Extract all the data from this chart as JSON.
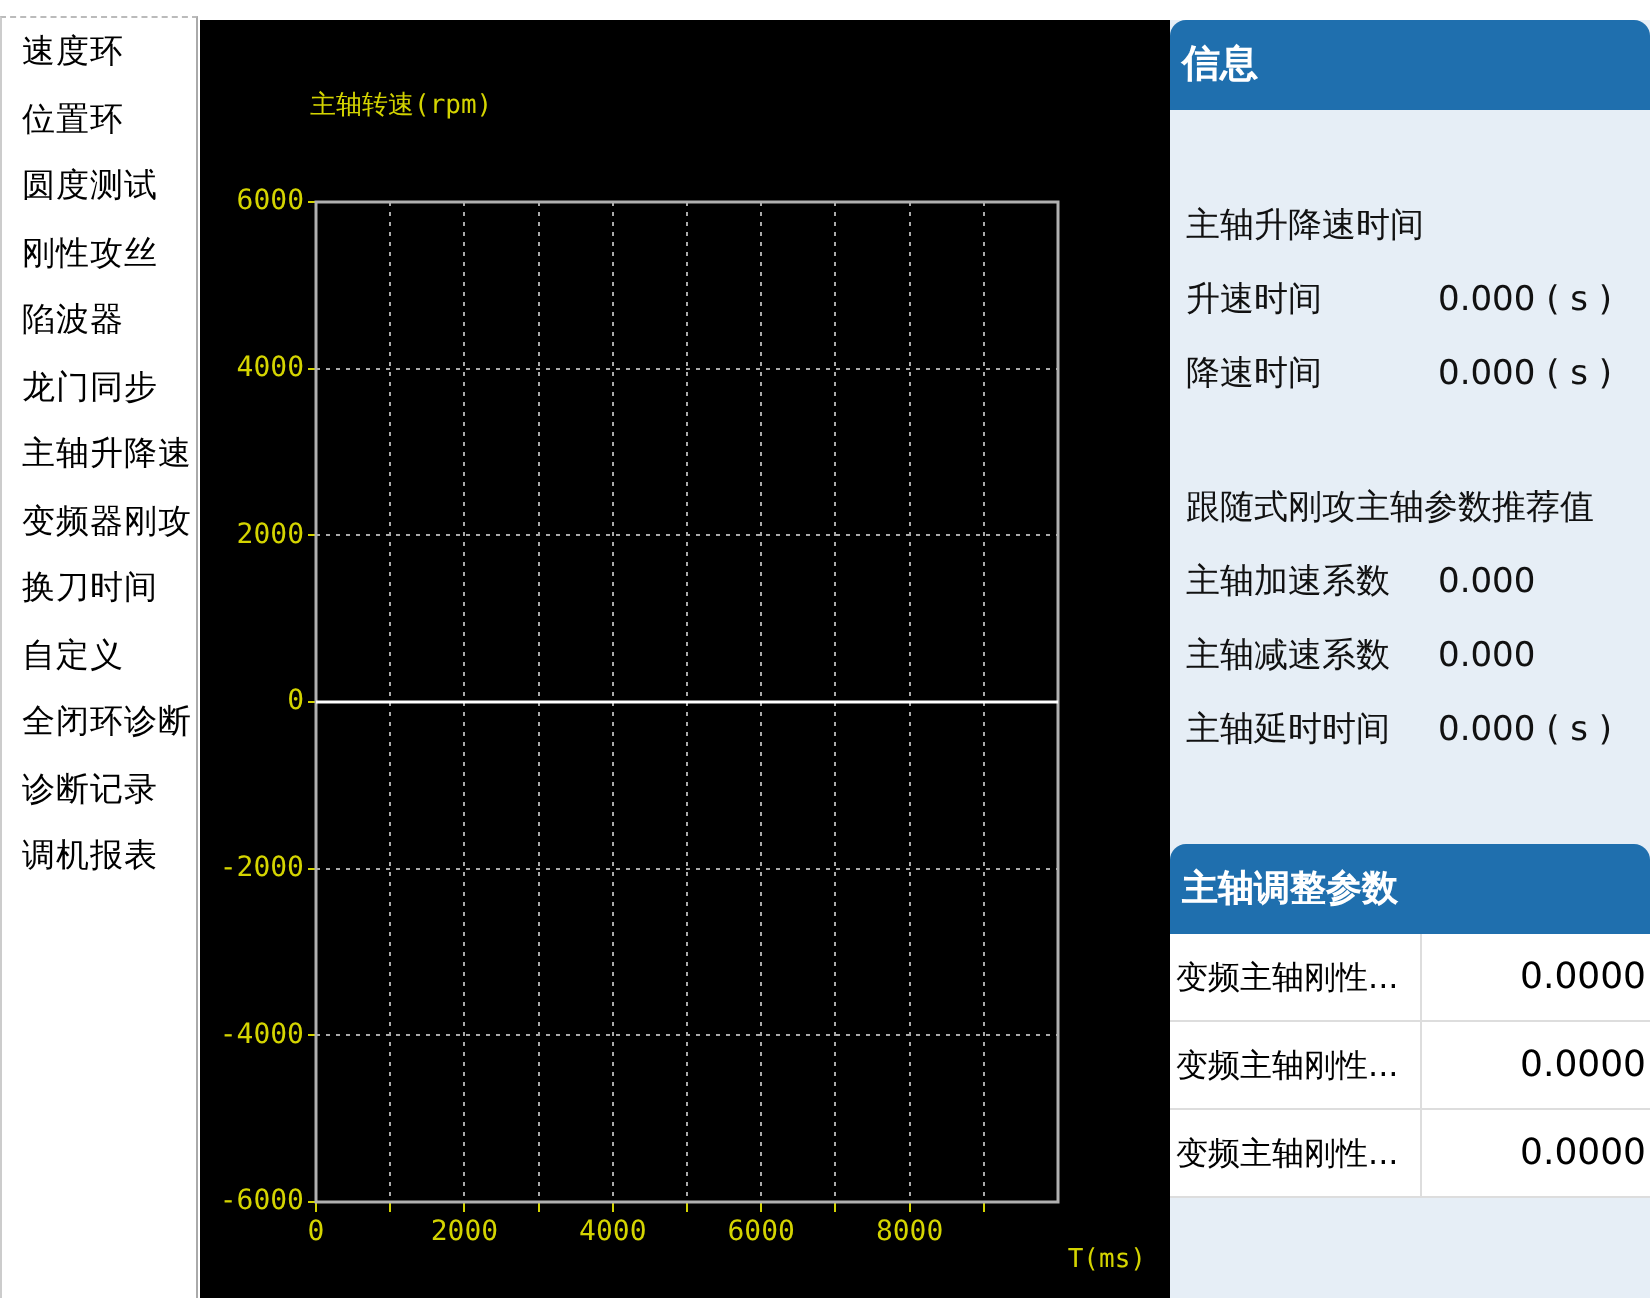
{
  "chart_data": [
    {
      "type": "other",
      "annotations": [
        "速度环",
        "位置环",
        "圆度测试",
        "刚性攻丝",
        "陷波器",
        "龙门同步",
        "主轴升降速",
        "变频器刚攻",
        "换刀时间",
        "自定义",
        "全闭环诊断",
        "诊断记录",
        "调机报表"
      ]
    },
    {
      "type": "line",
      "ylabel": "主轴转速(rpm)",
      "xlabel": "T(ms)",
      "series": [
        {
          "color": "#ffffff",
          "x": [
            0,
            10000
          ],
          "values": [
            0,
            0
          ]
        }
      ],
      "xlim": [
        0,
        10000
      ],
      "xticks": [
        0,
        {
          "value": 1000,
          "label": null
        },
        2000,
        {
          "value": 3000,
          "label": null
        },
        4000,
        {
          "value": 5000,
          "label": null
        },
        6000,
        {
          "value": 7000,
          "label": null
        },
        8000,
        {
          "value": 9000,
          "label": null
        }
      ],
      "ylim": [
        -6000,
        6000
      ],
      "yticks": [
        -6000,
        -4000,
        -2000,
        0,
        2000,
        4000,
        6000
      ],
      "grid": true,
      "legend": false,
      "marker": "none",
      "line_style": "solid"
    },
    {
      "type": "other",
      "title": "信息",
      "annotations": [
        "主轴升降速时间",
        "升速时间",
        "0.000 ( s )",
        "降速时间",
        "0.000 ( s )",
        "跟随式刚攻主轴参数推荐值",
        "主轴加速系数",
        "0.000",
        "主轴减速系数",
        "0.000",
        "主轴延时时间",
        "0.000 ( s )",
        "主轴调整参数",
        "变频主轴刚性...",
        "0.0000",
        "变频主轴刚性...",
        "0.0000",
        "变频主轴刚性...",
        "0.0000"
      ]
    }
  ]
}
